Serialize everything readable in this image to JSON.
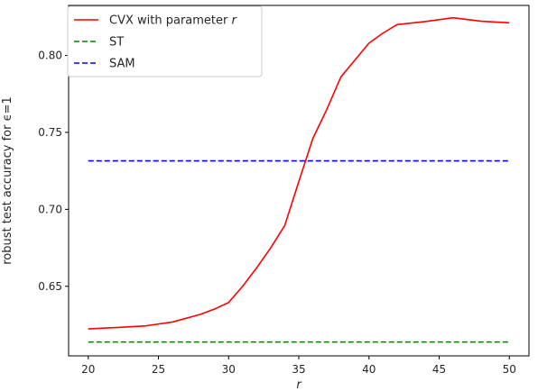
{
  "chart_data": {
    "type": "line",
    "xlabel": "r",
    "ylabel": "robust test accuracy for ϵ=1",
    "xlim": [
      18.6,
      51.4
    ],
    "ylim": [
      0.6048,
      0.8325
    ],
    "xticks": [
      20,
      25,
      30,
      35,
      40,
      45,
      50
    ],
    "xtick_labels": [
      "20",
      "25",
      "30",
      "35",
      "40",
      "45",
      "50"
    ],
    "yticks": [
      0.65,
      0.7,
      0.75,
      0.8
    ],
    "ytick_labels": [
      "0.65",
      "0.70",
      "0.75",
      "0.80"
    ],
    "grid": false,
    "legend_position": "top-left",
    "series": [
      {
        "name": "CVX with parameter r",
        "color": "#ff0000",
        "style": "solid",
        "x": [
          20,
          22,
          24,
          26,
          28,
          29,
          30,
          31,
          32,
          33,
          34,
          35,
          36,
          37,
          38,
          39,
          40,
          41,
          42,
          44,
          46,
          48,
          50
        ],
        "y": [
          0.6223,
          0.6232,
          0.6242,
          0.6268,
          0.6318,
          0.6352,
          0.6395,
          0.65,
          0.662,
          0.675,
          0.6895,
          0.718,
          0.746,
          0.765,
          0.786,
          0.797,
          0.808,
          0.8145,
          0.82,
          0.822,
          0.8245,
          0.8222,
          0.8212
        ]
      },
      {
        "name": "ST",
        "color": "#008000",
        "style": "dashed",
        "x": [
          20,
          50
        ],
        "y": [
          0.6138,
          0.6138
        ]
      },
      {
        "name": "SAM",
        "color": "#0000ff",
        "style": "dashed",
        "x": [
          20,
          50
        ],
        "y": [
          0.7315,
          0.7315
        ]
      }
    ]
  }
}
